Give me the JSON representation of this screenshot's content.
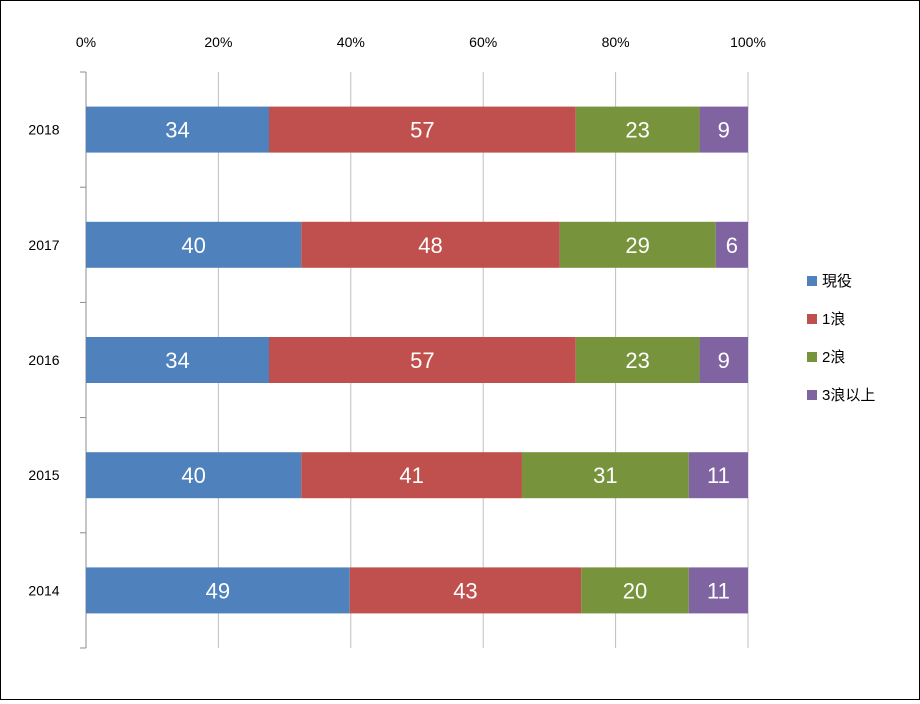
{
  "chart_data": {
    "type": "bar",
    "orientation": "horizontal",
    "stacked": "percent",
    "categories": [
      "2018",
      "2017",
      "2016",
      "2015",
      "2014"
    ],
    "series": [
      {
        "name": "現役",
        "values": [
          34,
          40,
          34,
          40,
          49
        ],
        "color": "#4f81bd"
      },
      {
        "name": "1浪",
        "values": [
          57,
          48,
          57,
          41,
          43
        ],
        "color": "#c0504d"
      },
      {
        "name": "2浪",
        "values": [
          23,
          29,
          23,
          31,
          20
        ],
        "color": "#77933c"
      },
      {
        "name": "3浪以上",
        "values": [
          9,
          6,
          9,
          11,
          11
        ],
        "color": "#8064a2"
      }
    ],
    "x_ticks": [
      "0%",
      "20%",
      "40%",
      "60%",
      "80%",
      "100%"
    ],
    "xlim": [
      0,
      100
    ],
    "x_axis_position": "top",
    "grid": true,
    "legend_position": "right",
    "data_labels": true
  }
}
